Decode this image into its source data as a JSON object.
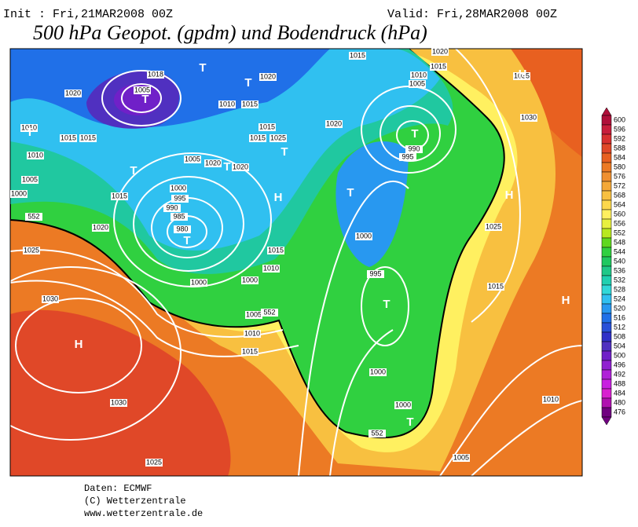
{
  "header": {
    "init": "Init : Fri,21MAR2008  00Z",
    "valid": "Valid: Fri,28MAR2008  00Z",
    "title": "500 hPa Geopot. (gpdm) und Bodendruck (hPa)"
  },
  "map": {
    "isobar_labels": [
      "1015",
      "1020",
      "1015",
      "1010",
      "1005",
      "1035",
      "1018",
      "1005",
      "1020",
      "1020",
      "1010",
      "1015",
      "1020",
      "1030",
      "1010",
      "1015",
      "1015",
      "1015",
      "1015",
      "1025",
      "990",
      "995",
      "1010",
      "1005",
      "1020",
      "1020",
      "1005",
      "1000",
      "995",
      "990",
      "985",
      "980",
      "1000",
      "1015",
      "1025",
      "1020",
      "1000",
      "1025",
      "1015",
      "1010",
      "1000",
      "1000",
      "995",
      "1015",
      "1030",
      "1005",
      "1010",
      "1015",
      "1000",
      "1030",
      "1000",
      "1010",
      "1025",
      "1005",
      "552",
      "552",
      "552"
    ],
    "centers": [
      "T",
      "T",
      "T",
      "T",
      "T",
      "T",
      "T",
      "H",
      "T",
      "T",
      "H",
      "T",
      "H",
      "H",
      "T",
      "H",
      "T"
    ]
  },
  "colorbar": {
    "levels": [
      600,
      596,
      592,
      588,
      584,
      580,
      576,
      572,
      568,
      564,
      560,
      556,
      552,
      548,
      544,
      540,
      536,
      532,
      528,
      524,
      520,
      516,
      512,
      508,
      504,
      500,
      496,
      492,
      488,
      484,
      480,
      476
    ],
    "colors": [
      "#b0103a",
      "#c81e3c",
      "#d83030",
      "#e04828",
      "#e86020",
      "#ec7a24",
      "#f09030",
      "#f4a838",
      "#f8c040",
      "#fcd84c",
      "#fff060",
      "#e8f040",
      "#b8e820",
      "#60d820",
      "#30d040",
      "#20c860",
      "#20c888",
      "#20d0b0",
      "#30d8d8",
      "#30c0f0",
      "#2898f0",
      "#2070e8",
      "#2850d8",
      "#3030c8",
      "#5030c0",
      "#7020c8",
      "#9020d0",
      "#b020d8",
      "#c820e0",
      "#d820d0",
      "#b010b0",
      "#700080"
    ]
  },
  "footer": {
    "source": "Daten: ECMWF",
    "copyright": "(C) Wetterzentrale",
    "url": "www.wetterzentrale.de"
  }
}
